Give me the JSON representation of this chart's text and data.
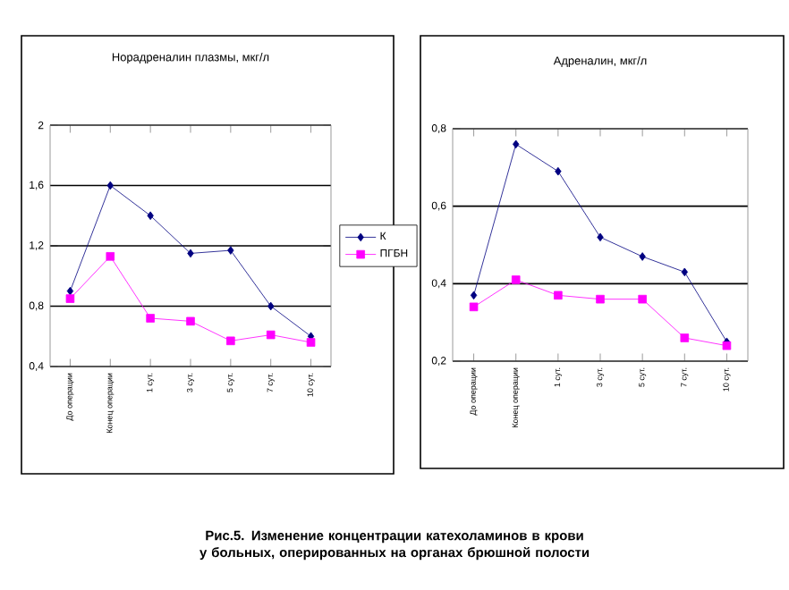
{
  "chart_data": [
    {
      "type": "line",
      "title": "Норадреналин плазмы, мкг/л",
      "categories": [
        "До операции",
        "Конец операции",
        "1 сут.",
        "3 сут.",
        "5 сут.",
        "7 сут.",
        "10 сут."
      ],
      "series": [
        {
          "name": "К",
          "color": "#000080",
          "marker": "diamond",
          "values": [
            0.9,
            1.6,
            1.4,
            1.15,
            1.17,
            0.8,
            0.6
          ]
        },
        {
          "name": "ПГБН",
          "color": "#ff00ff",
          "marker": "square",
          "values": [
            0.85,
            1.13,
            0.72,
            0.7,
            0.57,
            0.61,
            0.56
          ]
        }
      ],
      "ylim": [
        0.4,
        2
      ],
      "yticks": [
        {
          "value": 0.4,
          "label": "0,4"
        },
        {
          "value": 0.8,
          "label": "0,8"
        },
        {
          "value": 1.2,
          "label": "1,2"
        },
        {
          "value": 1.6,
          "label": "1,6"
        },
        2
      ],
      "grid": "y",
      "legend": "right",
      "annotations": [
        "Рис.5. Изменение концентрации катехоламинов в крови у больных, оперированных на органах брюшной полости"
      ]
    },
    {
      "type": "line",
      "title": "Адреналин, мкг/л",
      "categories": [
        "До операции",
        "Конец операции",
        "1 сут.",
        "3 сут.",
        "5 сут.",
        "7 сут.",
        "10 сут."
      ],
      "series": [
        {
          "color": "#000080",
          "marker": "diamond",
          "values": [
            0.37,
            0.76,
            0.69,
            0.52,
            0.47,
            0.43,
            0.25
          ]
        },
        {
          "color": "#ff00ff",
          "marker": "square",
          "values": [
            0.34,
            0.41,
            0.37,
            0.36,
            0.36,
            0.26,
            0.24
          ]
        }
      ],
      "ylim": [
        0.2,
        0.8
      ],
      "yticks": [
        {
          "value": 0.2,
          "label": "0,2"
        },
        {
          "value": 0.4,
          "label": "0,4"
        },
        {
          "value": 0.6,
          "label": "0,6"
        },
        {
          "value": 0.8,
          "label": "0,8"
        }
      ],
      "grid": "y"
    }
  ]
}
